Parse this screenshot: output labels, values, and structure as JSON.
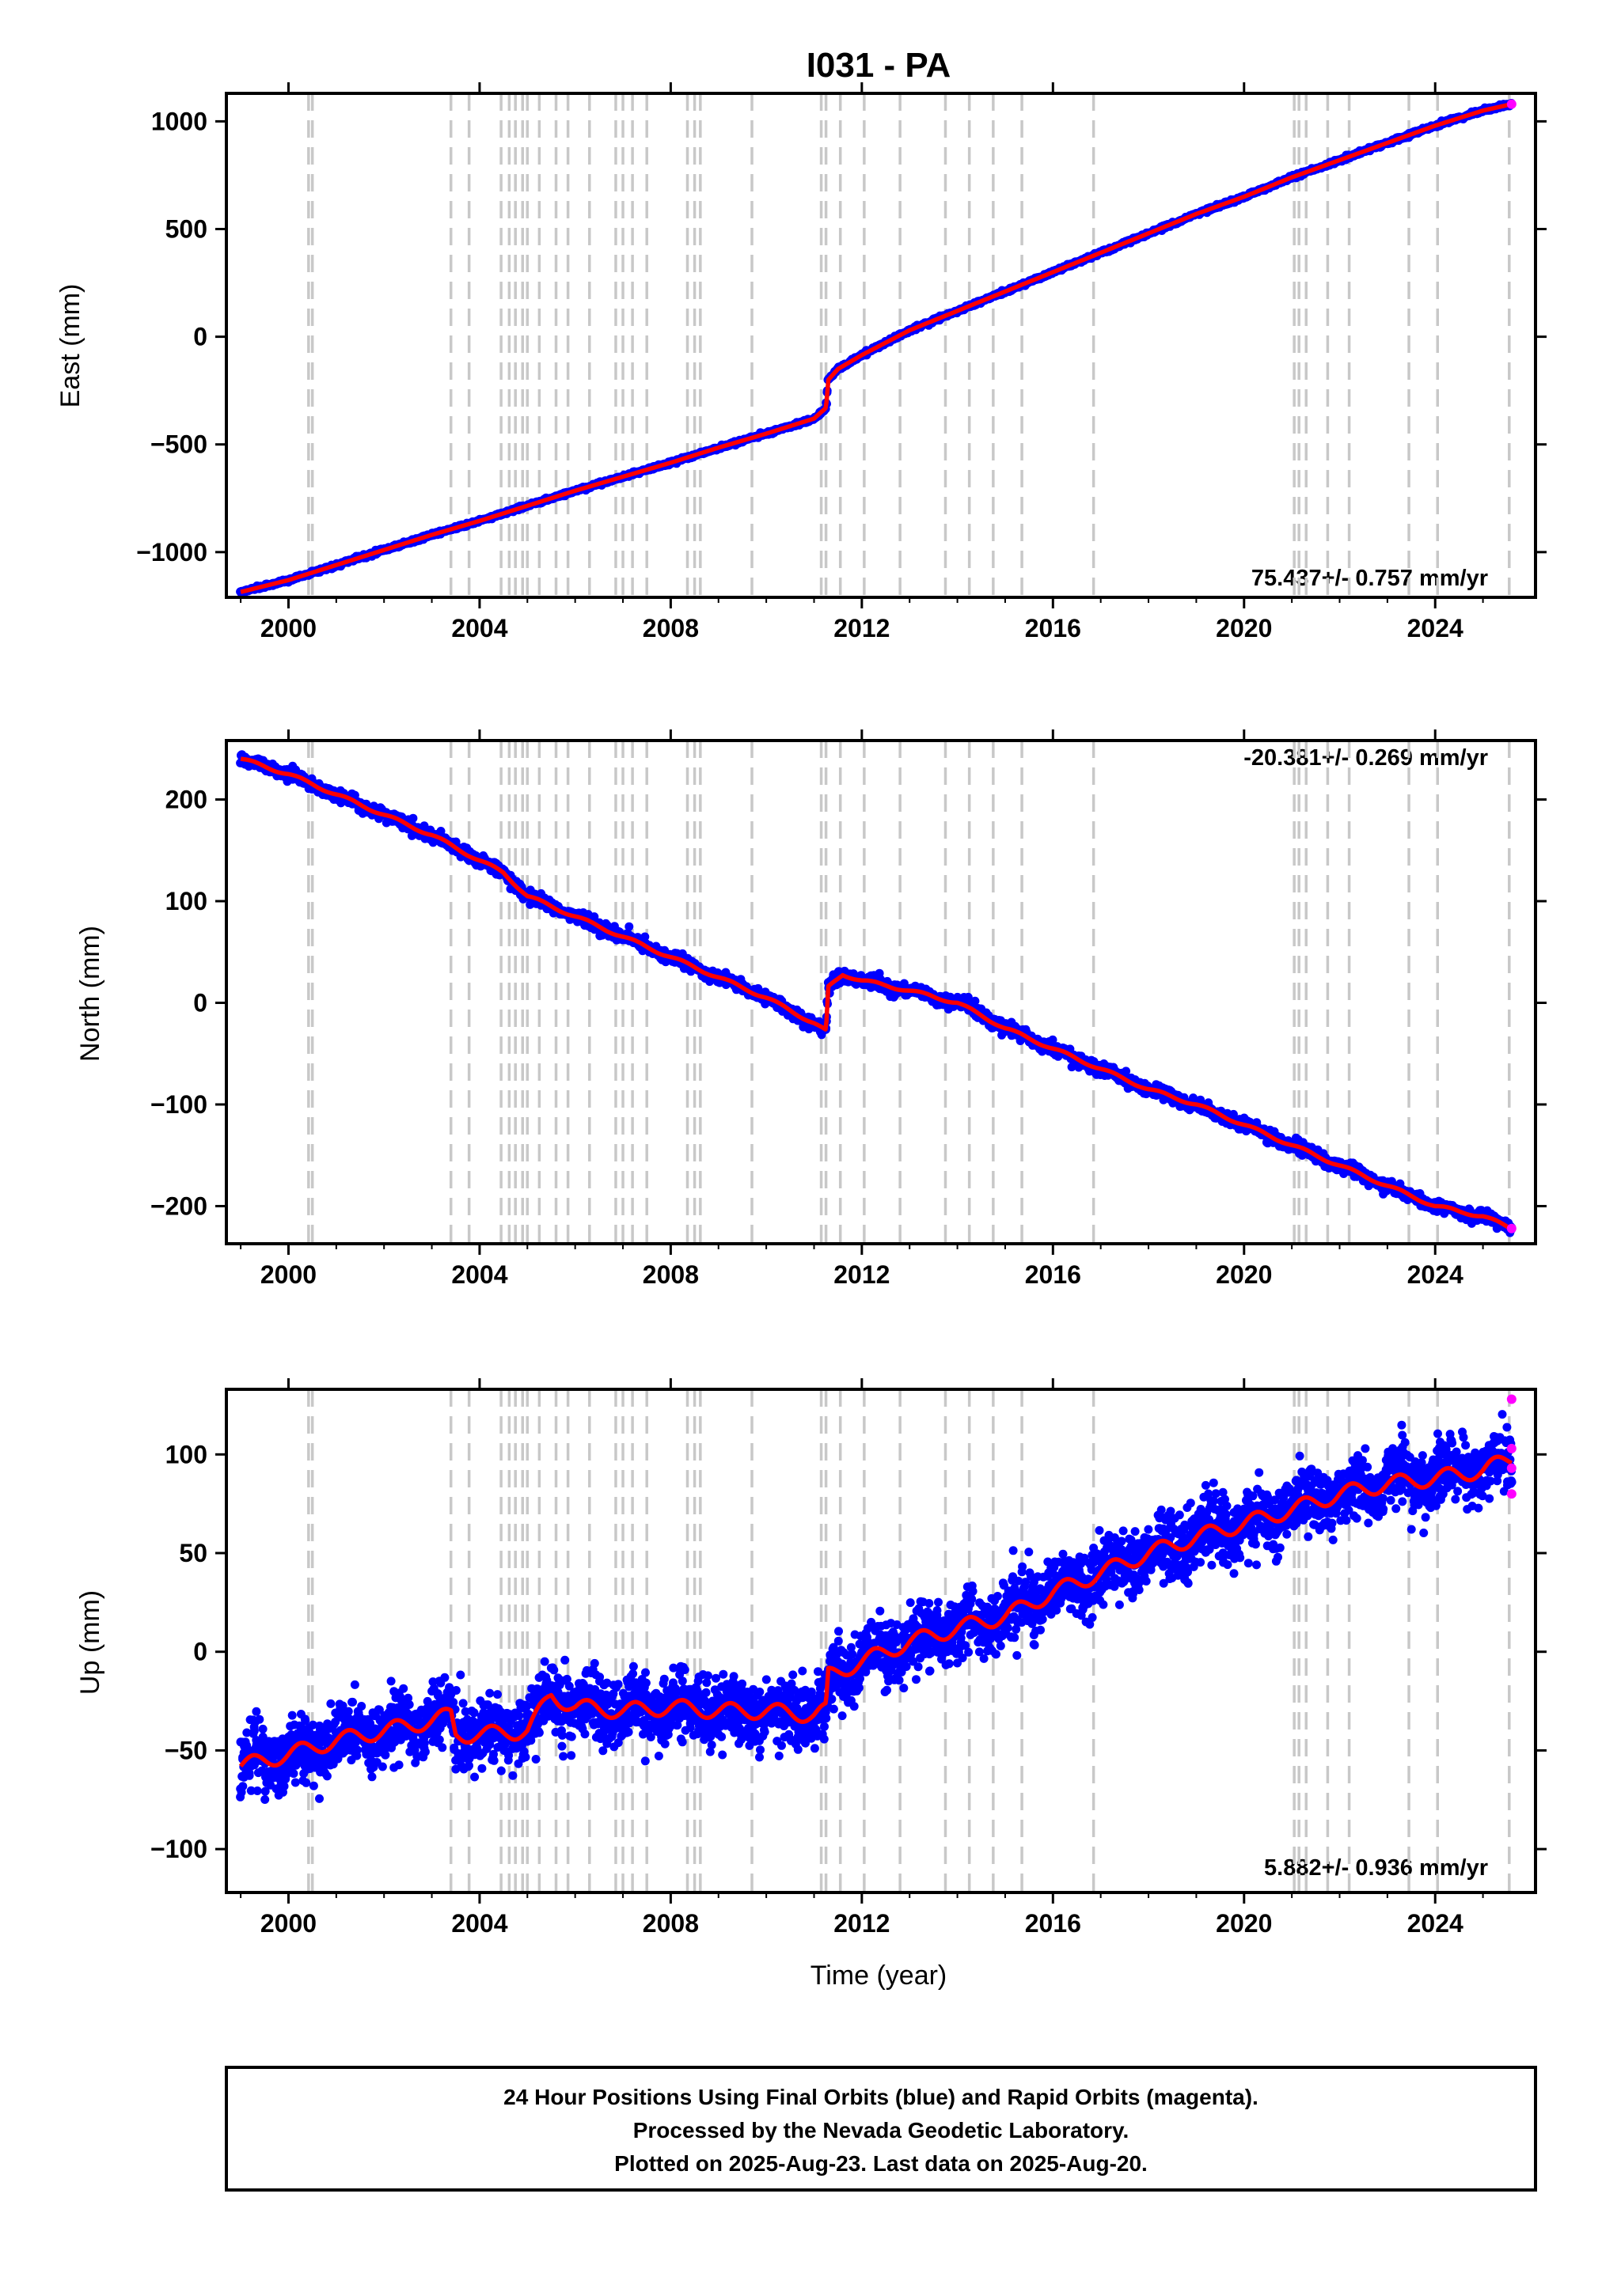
{
  "chart_data": [
    {
      "type": "scatter",
      "panel": "east",
      "title": "I031 - PA",
      "ylabel": "East (mm)",
      "xlabel": "",
      "xlim": [
        1998.7,
        2026.1
      ],
      "ylim": [
        -1210,
        1130
      ],
      "x_ticks": [
        "2000",
        "2004",
        "2008",
        "2012",
        "2016",
        "2020",
        "2024"
      ],
      "y_ticks": [
        "1000",
        "500",
        "0",
        "−500",
        "−1000"
      ],
      "y_tick_values": [
        1000,
        500,
        0,
        -500,
        -1000
      ],
      "rate_label": "75.437+/- 0.757 mm/yr",
      "rate_position": "bottom-right",
      "series": [
        {
          "name": "Final Orbits",
          "color": "#0000ff",
          "x": [
            1999.0,
            2000.0,
            2001.0,
            2002.0,
            2003.0,
            2004.0,
            2005.0,
            2006.0,
            2007.0,
            2008.0,
            2009.0,
            2010.0,
            2011.0,
            2011.25,
            2011.3,
            2011.5,
            2012.0,
            2013.0,
            2014.0,
            2015.0,
            2016.0,
            2017.0,
            2018.0,
            2019.0,
            2020.0,
            2021.0,
            2022.0,
            2023.0,
            2024.0,
            2025.0,
            2025.6
          ],
          "y": [
            -1185,
            -1130,
            -1060,
            -990,
            -920,
            -855,
            -785,
            -715,
            -650,
            -585,
            -515,
            -450,
            -380,
            -330,
            -200,
            -150,
            -85,
            30,
            120,
            210,
            300,
            390,
            480,
            570,
            650,
            740,
            820,
            900,
            980,
            1050,
            1080
          ]
        },
        {
          "name": "Rapid Orbits",
          "color": "#ff00ff",
          "x": [
            2025.6
          ],
          "y": [
            1080
          ]
        }
      ],
      "fit_color": "#ff0000",
      "offsets_color": "#c8c8c8"
    },
    {
      "type": "scatter",
      "panel": "north",
      "ylabel": "North (mm)",
      "xlabel": "",
      "xlim": [
        1998.7,
        2026.1
      ],
      "ylim": [
        -237,
        258
      ],
      "x_ticks": [
        "2000",
        "2004",
        "2008",
        "2012",
        "2016",
        "2020",
        "2024"
      ],
      "y_ticks": [
        "200",
        "100",
        "0",
        "−100",
        "−200"
      ],
      "y_tick_values": [
        200,
        100,
        0,
        -100,
        -200
      ],
      "rate_label": "-20.381+/- 0.269 mm/yr",
      "rate_position": "top-right",
      "series": [
        {
          "name": "Final Orbits",
          "color": "#0000ff",
          "x": [
            1999.0,
            2000.0,
            2001.0,
            2002.0,
            2003.0,
            2004.0,
            2004.5,
            2005.0,
            2006.0,
            2007.0,
            2008.0,
            2009.0,
            2010.0,
            2011.0,
            2011.25,
            2011.3,
            2011.6,
            2012.0,
            2013.0,
            2014.0,
            2015.0,
            2016.0,
            2017.0,
            2018.0,
            2019.0,
            2020.0,
            2021.0,
            2022.0,
            2023.0,
            2024.0,
            2025.0,
            2025.6
          ],
          "y": [
            240,
            225,
            205,
            185,
            165,
            140,
            128,
            105,
            85,
            65,
            45,
            25,
            5,
            -20,
            -28,
            15,
            28,
            22,
            12,
            0,
            -25,
            -45,
            -65,
            -85,
            -100,
            -120,
            -140,
            -160,
            -180,
            -200,
            -210,
            -222
          ]
        },
        {
          "name": "Rapid Orbits",
          "color": "#ff00ff",
          "x": [
            2025.6
          ],
          "y": [
            -222
          ]
        }
      ],
      "fit_color": "#ff0000",
      "offsets_color": "#c8c8c8"
    },
    {
      "type": "scatter",
      "panel": "up",
      "ylabel": "Up (mm)",
      "xlabel": "Time (year)",
      "xlim": [
        1998.7,
        2026.1
      ],
      "ylim": [
        -122,
        133
      ],
      "x_ticks": [
        "2000",
        "2004",
        "2008",
        "2012",
        "2016",
        "2020",
        "2024"
      ],
      "y_ticks": [
        "100",
        "50",
        "0",
        "−50",
        "−100"
      ],
      "y_tick_values": [
        100,
        50,
        0,
        -50,
        -100
      ],
      "rate_label": "5.882+/- 0.936 mm/yr",
      "rate_position": "bottom-right",
      "series": [
        {
          "name": "Final Orbits",
          "color": "#0000ff",
          "x": [
            1999.0,
            2000.0,
            2001.0,
            2002.0,
            2003.0,
            2003.4,
            2003.5,
            2004.0,
            2005.0,
            2005.5,
            2006.0,
            2007.0,
            2008.0,
            2009.0,
            2010.0,
            2011.0,
            2011.25,
            2011.3,
            2012.0,
            2013.0,
            2014.0,
            2015.0,
            2016.0,
            2017.0,
            2018.0,
            2019.0,
            2020.0,
            2021.0,
            2022.0,
            2023.0,
            2024.0,
            2025.0,
            2025.6
          ],
          "y": [
            -58,
            -52,
            -45,
            -40,
            -35,
            -32,
            -42,
            -42,
            -40,
            -22,
            -28,
            -30,
            -28,
            -30,
            -30,
            -32,
            -30,
            -12,
            -5,
            5,
            12,
            18,
            30,
            40,
            50,
            58,
            65,
            72,
            80,
            85,
            88,
            92,
            98
          ]
        },
        {
          "name": "Rapid Orbits",
          "color": "#ff00ff",
          "x": [
            2025.6,
            2025.6,
            2025.6,
            2025.6
          ],
          "y": [
            128,
            103,
            93,
            80
          ]
        }
      ],
      "fit_color": "#ff0000",
      "offsets_color": "#c8c8c8"
    }
  ],
  "offset_epochs": [
    2000.42,
    2000.5,
    2003.4,
    2003.78,
    2004.45,
    2004.62,
    2004.75,
    2004.9,
    2005.0,
    2005.25,
    2005.6,
    2005.85,
    2006.3,
    2006.85,
    2007.0,
    2007.2,
    2007.5,
    2008.35,
    2008.5,
    2008.62,
    2009.7,
    2011.15,
    2011.25,
    2011.55,
    2012.05,
    2012.8,
    2013.75,
    2014.25,
    2014.75,
    2015.35,
    2016.85,
    2021.05,
    2021.15,
    2021.3,
    2021.75,
    2022.2,
    2023.45,
    2024.05,
    2025.55
  ],
  "footer": {
    "line1": "24 Hour Positions Using Final Orbits (blue) and Rapid Orbits (magenta).",
    "line2": "Processed by the Nevada Geodetic Laboratory.",
    "line3": "Plotted on 2025-Aug-23. Last data on 2025-Aug-20."
  }
}
